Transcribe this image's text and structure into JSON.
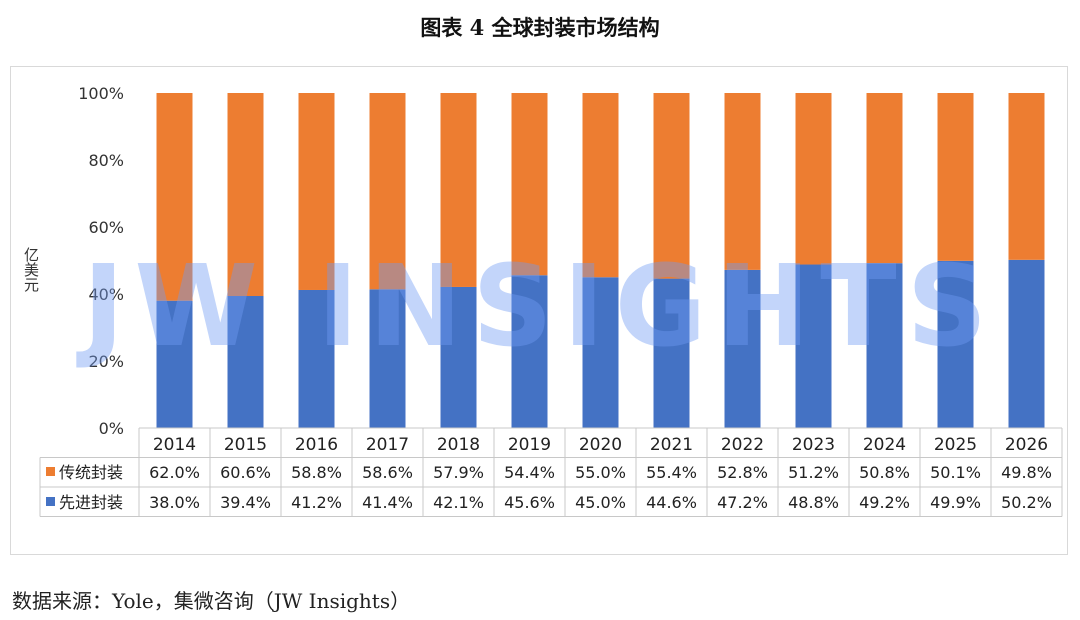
{
  "title": "图表 4 全球封装市场结构",
  "source": "数据来源：Yole，集微咨询（JW Insights）",
  "watermark": "JW INSIGHTS",
  "colors": {
    "advanced": "#4472c4",
    "traditional": "#ed7d31",
    "watermark": "#6f9bf2"
  },
  "chart_data": {
    "type": "bar",
    "stacked": true,
    "ylabel": "亿美元",
    "ylim": [
      0,
      100
    ],
    "yticks": [
      "0%",
      "20%",
      "40%",
      "60%",
      "80%",
      "100%"
    ],
    "grid": false,
    "legend": "table-below",
    "categories": [
      "2014",
      "2015",
      "2016",
      "2017",
      "2018",
      "2019",
      "2020",
      "2021",
      "2022",
      "2023",
      "2024",
      "2025",
      "2026"
    ],
    "series": [
      {
        "name": "先进封装",
        "values": [
          38.0,
          39.4,
          41.2,
          41.4,
          42.1,
          45.6,
          45.0,
          44.6,
          47.2,
          48.8,
          49.2,
          49.9,
          50.2
        ],
        "labels": [
          "38.0%",
          "39.4%",
          "41.2%",
          "41.4%",
          "42.1%",
          "45.6%",
          "45.0%",
          "44.6%",
          "47.2%",
          "48.8%",
          "49.2%",
          "49.9%",
          "50.2%"
        ]
      },
      {
        "name": "传统封装",
        "values": [
          62.0,
          60.6,
          58.8,
          58.6,
          57.9,
          54.4,
          55.0,
          55.4,
          52.8,
          51.2,
          50.8,
          50.1,
          49.8
        ],
        "labels": [
          "62.0%",
          "60.6%",
          "58.8%",
          "58.6%",
          "57.9%",
          "54.4%",
          "55.0%",
          "55.4%",
          "52.8%",
          "51.2%",
          "50.8%",
          "50.1%",
          "49.8%"
        ]
      }
    ]
  }
}
